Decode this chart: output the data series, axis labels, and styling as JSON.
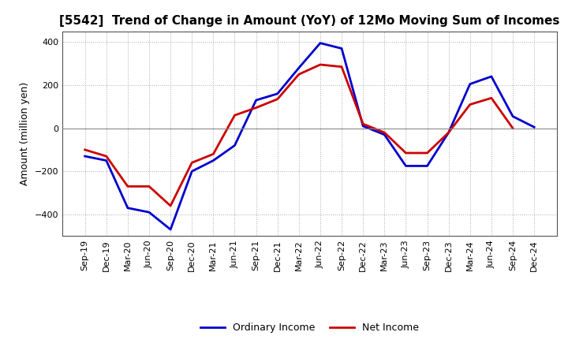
{
  "title": "[5542]  Trend of Change in Amount (YoY) of 12Mo Moving Sum of Incomes",
  "ylabel": "Amount (million yen)",
  "x_labels": [
    "Sep-19",
    "Dec-19",
    "Mar-20",
    "Jun-20",
    "Sep-20",
    "Dec-20",
    "Mar-21",
    "Jun-21",
    "Sep-21",
    "Dec-21",
    "Mar-22",
    "Jun-22",
    "Sep-22",
    "Dec-22",
    "Mar-23",
    "Jun-23",
    "Sep-23",
    "Dec-23",
    "Mar-24",
    "Jun-24",
    "Sep-24",
    "Dec-24"
  ],
  "ordinary_income": [
    -130,
    -150,
    -370,
    -390,
    -470,
    -200,
    -150,
    -80,
    130,
    160,
    280,
    395,
    370,
    10,
    -30,
    -175,
    -175,
    -20,
    205,
    240,
    55,
    5
  ],
  "net_income": [
    -100,
    -130,
    -270,
    -270,
    -360,
    -160,
    -120,
    60,
    95,
    135,
    250,
    295,
    285,
    20,
    -20,
    -115,
    -115,
    -20,
    110,
    140,
    0,
    null
  ],
  "ordinary_income_color": "#0000cc",
  "net_income_color": "#cc0000",
  "ylim": [
    -500,
    450
  ],
  "yticks": [
    -400,
    -200,
    0,
    200,
    400
  ],
  "grid_color": "#aaaaaa",
  "background_color": "#ffffff",
  "legend_labels": [
    "Ordinary Income",
    "Net Income"
  ],
  "line_width": 2.0,
  "title_fontsize": 11,
  "ylabel_fontsize": 9,
  "tick_fontsize": 8
}
